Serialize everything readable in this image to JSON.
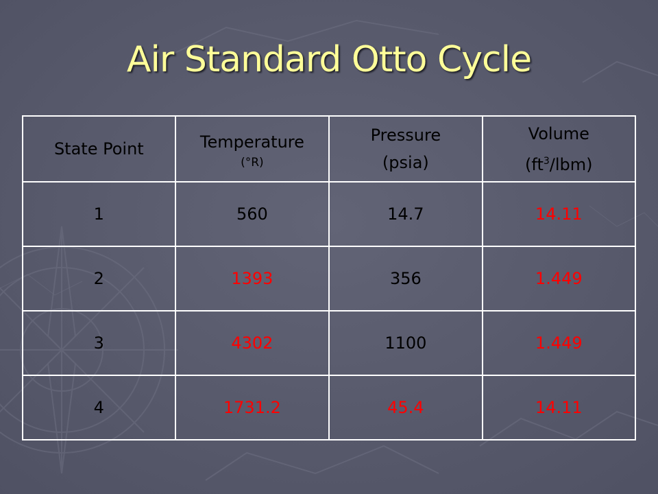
{
  "slide": {
    "title": "Air Standard Otto Cycle"
  },
  "colors": {
    "background": "#5a5c6e",
    "title": "#ffff99",
    "grid": "#ffffff",
    "computed_value": "#ff0000",
    "given_value": "#000000"
  },
  "icons": {
    "background_art": "compass-rose-icon"
  },
  "table": {
    "headers": {
      "state": "State Point",
      "temperature": "Temperature",
      "temperature_unit": "(°R)",
      "pressure": "Pressure",
      "pressure_unit": "(psia)",
      "volume": "Volume",
      "volume_unit_pre": "(ft",
      "volume_unit_sup": "3",
      "volume_unit_post": "/lbm)"
    },
    "rows": [
      {
        "state": "1",
        "temperature": "560",
        "pressure": "14.7",
        "volume": "14.11",
        "computed": [
          "volume"
        ]
      },
      {
        "state": "2",
        "temperature": "1393",
        "pressure": "356",
        "volume": "1.449",
        "computed": [
          "temperature",
          "volume"
        ]
      },
      {
        "state": "3",
        "temperature": "4302",
        "pressure": "1100",
        "volume": "1.449",
        "computed": [
          "temperature",
          "volume"
        ]
      },
      {
        "state": "4",
        "temperature": "1731.2",
        "pressure": "45.4",
        "volume": "14.11",
        "computed": [
          "temperature",
          "pressure",
          "volume"
        ]
      }
    ]
  }
}
